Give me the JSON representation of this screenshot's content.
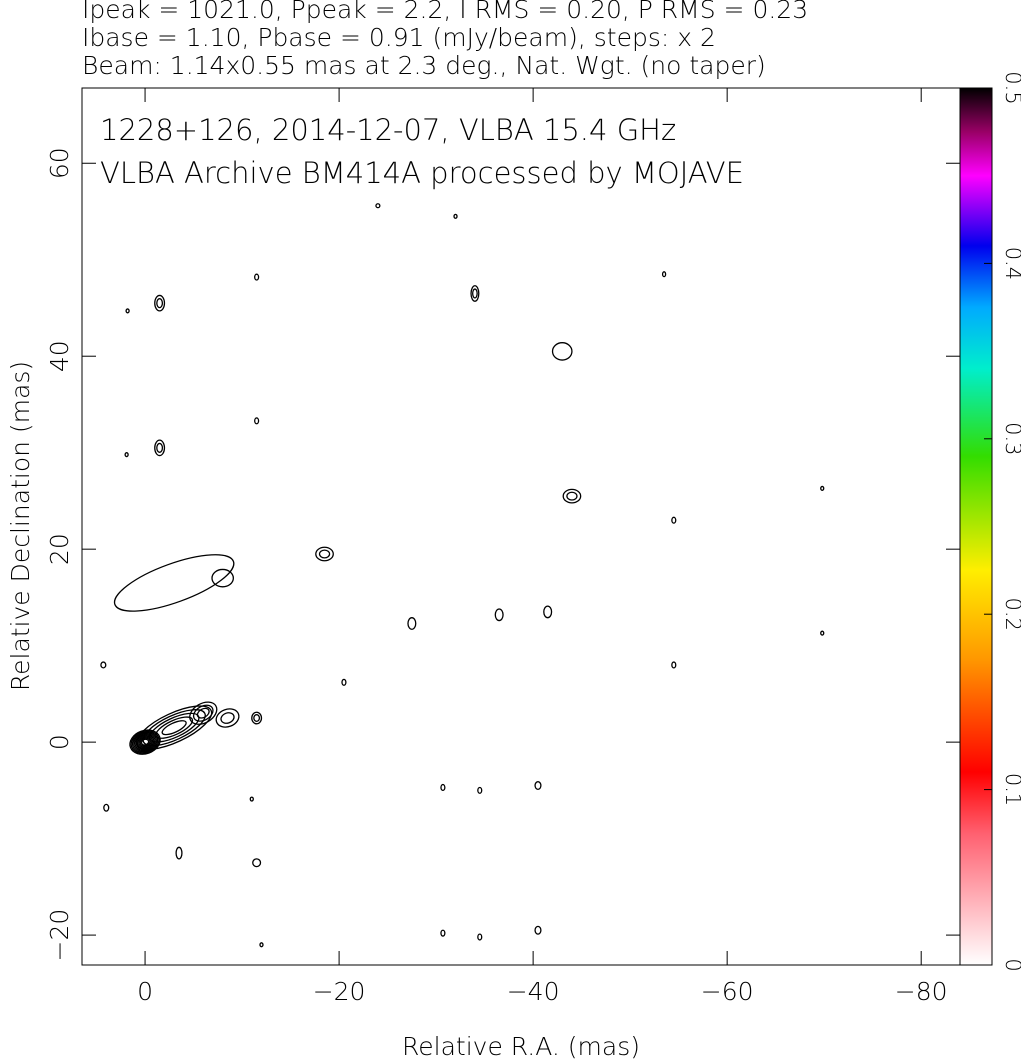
{
  "chart_data": {
    "type": "contour",
    "title_lines": [
      "Ipeak = 1021.0, Ppeak = 2.2, I RMS = 0.20, P RMS = 0.23",
      "Ibase = 1.10, Pbase = 0.91 (mJy/beam), steps: x 2",
      "Beam: 1.14x0.55 mas at 2.3 deg., Nat. Wgt. (no taper)"
    ],
    "annotations": [
      "1228+126, 2014-12-07, VLBA 15.4 GHz",
      "VLBA Archive BM414A processed by MOJAVE"
    ],
    "xlabel": "Relative R.A. (mas)",
    "ylabel": "Relative Declination (mas)",
    "xlim": [
      6.5,
      -84
    ],
    "ylim": [
      -23.1,
      67.8
    ],
    "xticks": [
      0,
      {
        "value": -20,
        "label": "−20"
      },
      {
        "value": -40,
        "label": "−40"
      },
      {
        "value": -60,
        "label": "−60"
      },
      {
        "value": -80,
        "label": "−80"
      }
    ],
    "yticks": [
      {
        "value": -20,
        "label": "−20"
      },
      0,
      20,
      40,
      60
    ],
    "colorbar_lim": [
      0,
      0.5
    ],
    "colorbar_ticks": [
      0,
      0.1,
      0.2,
      0.3,
      0.4,
      0.5
    ],
    "color": "#000000",
    "features": [
      {
        "x": 0,
        "y": 0,
        "rx": 1.6,
        "ry": 1.2,
        "angle": 20,
        "levels": 10
      },
      {
        "x": -3,
        "y": 1.5,
        "rx": 4.2,
        "ry": 1.5,
        "angle": 25,
        "levels": 5
      },
      {
        "x": -6,
        "y": 3,
        "rx": 1.5,
        "ry": 1,
        "angle": 30,
        "levels": 3
      },
      {
        "x": -8.5,
        "y": 2.5,
        "rx": 1.2,
        "ry": 0.9,
        "angle": 20,
        "levels": 2
      },
      {
        "x": -11.5,
        "y": 2.5,
        "rx": 0.5,
        "ry": 0.6,
        "angle": 0,
        "levels": 2
      },
      {
        "x": -3,
        "y": 16.5,
        "rx": 6.5,
        "ry": 2,
        "angle": 20,
        "levels": 1
      },
      {
        "x": -8,
        "y": 17,
        "rx": 1.1,
        "ry": 0.9,
        "angle": 0,
        "levels": 1
      },
      {
        "x": -18.5,
        "y": 19.5,
        "rx": 0.9,
        "ry": 0.7,
        "angle": 0,
        "levels": 2
      },
      {
        "x": -43,
        "y": 40.5,
        "rx": 1,
        "ry": 0.9,
        "angle": 0,
        "levels": 1
      },
      {
        "x": -44,
        "y": 25.5,
        "rx": 0.9,
        "ry": 0.7,
        "angle": 0,
        "levels": 2
      },
      {
        "x": -34,
        "y": 46.5,
        "rx": 0.4,
        "ry": 0.8,
        "angle": 0,
        "levels": 2
      },
      {
        "x": -1.5,
        "y": 45.5,
        "rx": 0.5,
        "ry": 0.8,
        "angle": 0,
        "levels": 2
      },
      {
        "x": -1.5,
        "y": 30.5,
        "rx": 0.5,
        "ry": 0.8,
        "angle": 0,
        "levels": 2
      },
      {
        "x": -27.5,
        "y": 12.3,
        "rx": 0.4,
        "ry": 0.6,
        "angle": 0,
        "levels": 1
      },
      {
        "x": -36.5,
        "y": 13.2,
        "rx": 0.4,
        "ry": 0.6,
        "angle": 0,
        "levels": 1
      },
      {
        "x": -41.5,
        "y": 13.5,
        "rx": 0.4,
        "ry": 0.6,
        "angle": 0,
        "levels": 1
      },
      {
        "x": -40.5,
        "y": -4.5,
        "rx": 0.3,
        "ry": 0.4,
        "angle": 0,
        "levels": 1
      },
      {
        "x": -40.5,
        "y": -19.5,
        "rx": 0.3,
        "ry": 0.4,
        "angle": 0,
        "levels": 1
      },
      {
        "x": -11.5,
        "y": -12.5,
        "rx": 0.4,
        "ry": 0.4,
        "angle": 0,
        "levels": 1
      },
      {
        "x": -3.5,
        "y": -11.5,
        "rx": 0.3,
        "ry": 0.6,
        "angle": 0,
        "levels": 1
      },
      {
        "x": -30.7,
        "y": -4.7,
        "rx": 0.2,
        "ry": 0.3,
        "angle": 0,
        "levels": 1
      },
      {
        "x": -34.5,
        "y": -5,
        "rx": 0.2,
        "ry": 0.3,
        "angle": 0,
        "levels": 1
      },
      {
        "x": -30.7,
        "y": -19.8,
        "rx": 0.2,
        "ry": 0.3,
        "angle": 0,
        "levels": 1
      },
      {
        "x": -34.5,
        "y": -20.2,
        "rx": 0.2,
        "ry": 0.3,
        "angle": 0,
        "levels": 1
      },
      {
        "x": -54.5,
        "y": 8,
        "rx": 0.2,
        "ry": 0.3,
        "angle": 0,
        "levels": 1
      },
      {
        "x": -54.5,
        "y": 23,
        "rx": 0.2,
        "ry": 0.3,
        "angle": 0,
        "levels": 1
      },
      {
        "x": -69.8,
        "y": 26.3,
        "rx": 0.15,
        "ry": 0.2,
        "angle": 0,
        "levels": 1
      },
      {
        "x": -69.8,
        "y": 11.3,
        "rx": 0.15,
        "ry": 0.2,
        "angle": 0,
        "levels": 1
      },
      {
        "x": -53.5,
        "y": 48.5,
        "rx": 0.15,
        "ry": 0.25,
        "angle": 0,
        "levels": 1
      },
      {
        "x": -11.5,
        "y": 33.3,
        "rx": 0.2,
        "ry": 0.3,
        "angle": 0,
        "levels": 1
      },
      {
        "x": -11.5,
        "y": 48.2,
        "rx": 0.2,
        "ry": 0.3,
        "angle": 0,
        "levels": 1
      },
      {
        "x": -32,
        "y": 54.5,
        "rx": 0.15,
        "ry": 0.2,
        "angle": 0,
        "levels": 1
      },
      {
        "x": -24,
        "y": 55.6,
        "rx": 0.2,
        "ry": 0.2,
        "angle": 0,
        "levels": 1
      },
      {
        "x": -20.5,
        "y": 6.2,
        "rx": 0.2,
        "ry": 0.3,
        "angle": 0,
        "levels": 1
      },
      {
        "x": 4.3,
        "y": 8,
        "rx": 0.25,
        "ry": 0.3,
        "angle": 0,
        "levels": 1
      },
      {
        "x": 4,
        "y": -6.8,
        "rx": 0.25,
        "ry": 0.35,
        "angle": 0,
        "levels": 1
      },
      {
        "x": 1.9,
        "y": 29.8,
        "rx": 0.15,
        "ry": 0.2,
        "angle": 0,
        "levels": 1
      },
      {
        "x": 1.8,
        "y": 44.7,
        "rx": 0.15,
        "ry": 0.2,
        "angle": 0,
        "levels": 1
      },
      {
        "x": -11,
        "y": -5.9,
        "rx": 0.15,
        "ry": 0.2,
        "angle": 0,
        "levels": 1
      },
      {
        "x": -12,
        "y": -21,
        "rx": 0.15,
        "ry": 0.2,
        "angle": 0,
        "levels": 1
      }
    ]
  }
}
